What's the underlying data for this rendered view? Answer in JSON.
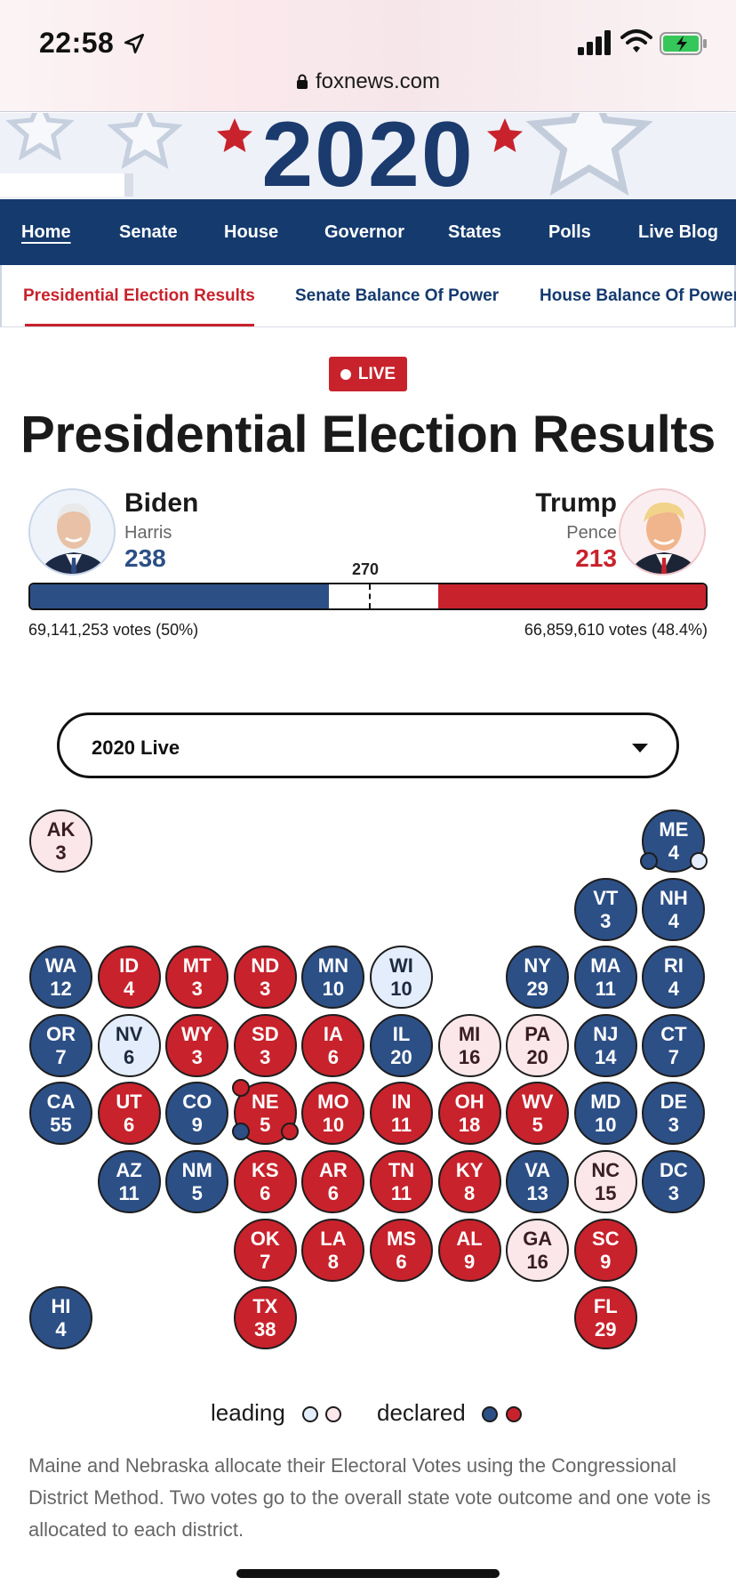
{
  "status_bar": {
    "time": "22:58",
    "url": "foxnews.com"
  },
  "banner": {
    "year": "2020"
  },
  "nav": {
    "items": [
      {
        "label": "Home",
        "active": true
      },
      {
        "label": "Senate"
      },
      {
        "label": "House"
      },
      {
        "label": "Governor"
      },
      {
        "label": "States"
      },
      {
        "label": "Polls"
      },
      {
        "label": "Live Blog"
      }
    ]
  },
  "subnav": {
    "items": [
      {
        "label": "Presidential Election Results",
        "active": true
      },
      {
        "label": "Senate Balance Of Power"
      },
      {
        "label": "House Balance Of Power"
      }
    ]
  },
  "live_badge": "LIVE",
  "title": "Presidential Election Results",
  "candidates": {
    "dem": {
      "name": "Biden",
      "running_mate": "Harris",
      "electoral_votes": "238",
      "popular_vote": "69,141,253 votes (50%)",
      "color": "#2c4f86"
    },
    "rep": {
      "name": "Trump",
      "running_mate": "Pence",
      "electoral_votes": "213",
      "popular_vote": "66,859,610 votes (48.4%)",
      "color": "#c8222c"
    }
  },
  "ev_threshold": "270",
  "ev_total": 538,
  "select": {
    "value": "2020 Live"
  },
  "states": [
    {
      "ab": "AK",
      "ev": "3",
      "status": "rep-l"
    },
    {
      "ab": "ME",
      "ev": "4",
      "status": "dem-d"
    },
    {
      "ab": "VT",
      "ev": "3",
      "status": "dem-d"
    },
    {
      "ab": "NH",
      "ev": "4",
      "status": "dem-d"
    },
    {
      "ab": "WA",
      "ev": "12",
      "status": "dem-d"
    },
    {
      "ab": "ID",
      "ev": "4",
      "status": "rep-d"
    },
    {
      "ab": "MT",
      "ev": "3",
      "status": "rep-d"
    },
    {
      "ab": "ND",
      "ev": "3",
      "status": "rep-d"
    },
    {
      "ab": "MN",
      "ev": "10",
      "status": "dem-d"
    },
    {
      "ab": "WI",
      "ev": "10",
      "status": "dem-l"
    },
    {
      "ab": "NY",
      "ev": "29",
      "status": "dem-d"
    },
    {
      "ab": "MA",
      "ev": "11",
      "status": "dem-d"
    },
    {
      "ab": "RI",
      "ev": "4",
      "status": "dem-d"
    },
    {
      "ab": "OR",
      "ev": "7",
      "status": "dem-d"
    },
    {
      "ab": "NV",
      "ev": "6",
      "status": "dem-l"
    },
    {
      "ab": "WY",
      "ev": "3",
      "status": "rep-d"
    },
    {
      "ab": "SD",
      "ev": "3",
      "status": "rep-d"
    },
    {
      "ab": "IA",
      "ev": "6",
      "status": "rep-d"
    },
    {
      "ab": "IL",
      "ev": "20",
      "status": "dem-d"
    },
    {
      "ab": "MI",
      "ev": "16",
      "status": "rep-l"
    },
    {
      "ab": "PA",
      "ev": "20",
      "status": "rep-l"
    },
    {
      "ab": "NJ",
      "ev": "14",
      "status": "dem-d"
    },
    {
      "ab": "CT",
      "ev": "7",
      "status": "dem-d"
    },
    {
      "ab": "CA",
      "ev": "55",
      "status": "dem-d"
    },
    {
      "ab": "UT",
      "ev": "6",
      "status": "rep-d"
    },
    {
      "ab": "CO",
      "ev": "9",
      "status": "dem-d"
    },
    {
      "ab": "NE",
      "ev": "5",
      "status": "rep-d"
    },
    {
      "ab": "MO",
      "ev": "10",
      "status": "rep-d"
    },
    {
      "ab": "IN",
      "ev": "11",
      "status": "rep-d"
    },
    {
      "ab": "OH",
      "ev": "18",
      "status": "rep-d"
    },
    {
      "ab": "WV",
      "ev": "5",
      "status": "rep-d"
    },
    {
      "ab": "MD",
      "ev": "10",
      "status": "dem-d"
    },
    {
      "ab": "DE",
      "ev": "3",
      "status": "dem-d"
    },
    {
      "ab": "AZ",
      "ev": "11",
      "status": "dem-d"
    },
    {
      "ab": "NM",
      "ev": "5",
      "status": "dem-d"
    },
    {
      "ab": "KS",
      "ev": "6",
      "status": "rep-d"
    },
    {
      "ab": "AR",
      "ev": "6",
      "status": "rep-d"
    },
    {
      "ab": "TN",
      "ev": "11",
      "status": "rep-d"
    },
    {
      "ab": "KY",
      "ev": "8",
      "status": "rep-d"
    },
    {
      "ab": "VA",
      "ev": "13",
      "status": "dem-d"
    },
    {
      "ab": "NC",
      "ev": "15",
      "status": "rep-l"
    },
    {
      "ab": "DC",
      "ev": "3",
      "status": "dem-d"
    },
    {
      "ab": "OK",
      "ev": "7",
      "status": "rep-d"
    },
    {
      "ab": "LA",
      "ev": "8",
      "status": "rep-d"
    },
    {
      "ab": "MS",
      "ev": "6",
      "status": "rep-d"
    },
    {
      "ab": "AL",
      "ev": "9",
      "status": "rep-d"
    },
    {
      "ab": "GA",
      "ev": "16",
      "status": "rep-l"
    },
    {
      "ab": "SC",
      "ev": "9",
      "status": "rep-d"
    },
    {
      "ab": "HI",
      "ev": "4",
      "status": "dem-d"
    },
    {
      "ab": "TX",
      "ev": "38",
      "status": "rep-d"
    },
    {
      "ab": "FL",
      "ev": "29",
      "status": "rep-d"
    }
  ],
  "legend": {
    "leading": "leading",
    "declared": "declared"
  },
  "note": "Maine and Nebraska allocate their Electoral Votes using the Congressional District Method. Two votes go to the overall state vote outcome and one vote is allocated to each district."
}
